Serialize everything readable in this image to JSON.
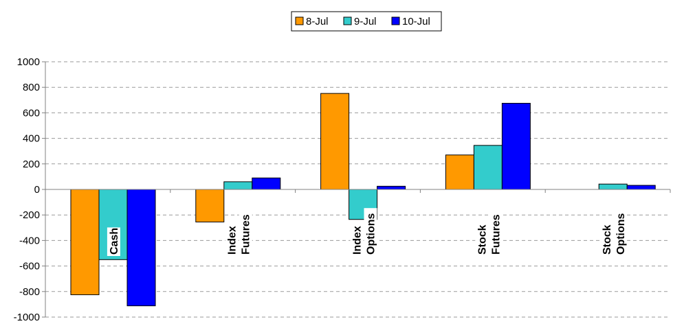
{
  "chart_data": {
    "type": "bar",
    "categories": [
      [
        "Cash"
      ],
      [
        "Index",
        "Futures"
      ],
      [
        "Index",
        "Options"
      ],
      [
        "Stock",
        "Futures"
      ],
      [
        "Stock",
        "Options"
      ]
    ],
    "series": [
      {
        "name": "8-Jul",
        "color": "#FF9900",
        "values": [
          -825,
          -255,
          752,
          270,
          0
        ]
      },
      {
        "name": "9-Jul",
        "color": "#33CCCC",
        "values": [
          -550,
          60,
          -235,
          345,
          42
        ]
      },
      {
        "name": "10-Jul",
        "color": "#0000FF",
        "values": [
          -912,
          90,
          25,
          675,
          32
        ]
      }
    ],
    "ylim": [
      -1000,
      1000
    ],
    "yticks": [
      "1000",
      "800",
      "600",
      "400",
      "200",
      "0",
      "-200",
      "-400",
      "-600",
      "-800",
      "-1000"
    ],
    "grid": true,
    "legend": "top-center",
    "title": "",
    "xlabel": "",
    "ylabel": ""
  }
}
